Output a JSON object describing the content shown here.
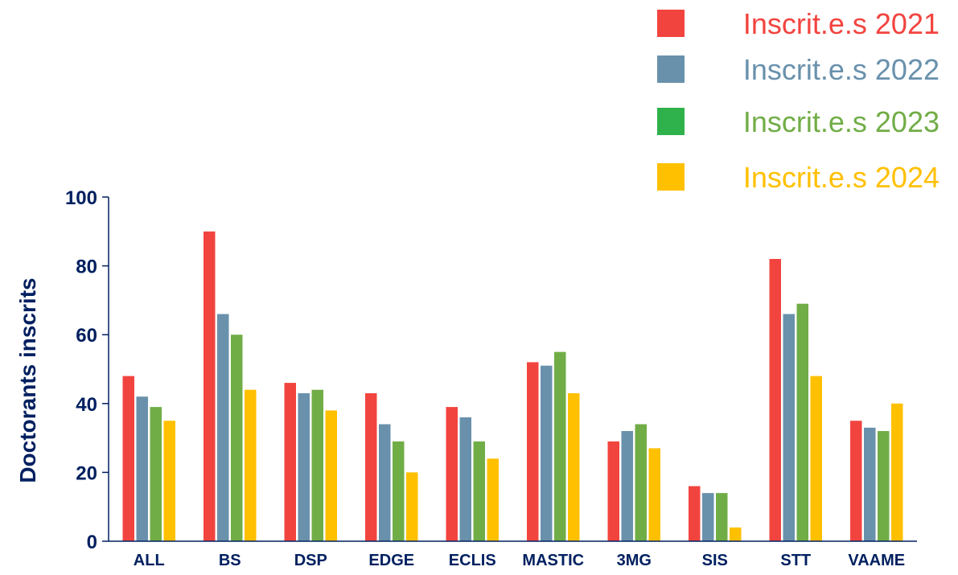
{
  "chart_data": {
    "type": "bar",
    "title": "",
    "xlabel": "",
    "ylabel": "Doctorants inscrits",
    "ylim": [
      0,
      100
    ],
    "yticks": [
      0,
      20,
      40,
      60,
      80,
      100
    ],
    "grid": false,
    "legend_position": "top-right",
    "categories": [
      "ALL",
      "BS",
      "DSP",
      "EDGE",
      "ECLIS",
      "MASTIC",
      "3MG",
      "SIS",
      "STT",
      "VAAME"
    ],
    "series": [
      {
        "name": "Inscrit.e.s 2021",
        "color": "#F2443F",
        "values": [
          48,
          90,
          46,
          43,
          39,
          52,
          29,
          16,
          82,
          35
        ]
      },
      {
        "name": "Inscrit.e.s 2022",
        "color": "#6991AC",
        "values": [
          42,
          66,
          43,
          34,
          36,
          51,
          32,
          14,
          66,
          33
        ]
      },
      {
        "name": "Inscrit.e.s 2023",
        "color": "#71AD47",
        "values": [
          39,
          60,
          44,
          29,
          29,
          55,
          34,
          14,
          69,
          32
        ]
      },
      {
        "name": "Inscrit.e.s 2024",
        "color": "#FFC000",
        "values": [
          35,
          44,
          38,
          20,
          24,
          43,
          27,
          4,
          48,
          40
        ]
      }
    ],
    "legend_marker_colors": [
      "#F2443F",
      "#6991AC",
      "#2FB14B",
      "#FFC000"
    ],
    "axis_color": "#002060"
  }
}
